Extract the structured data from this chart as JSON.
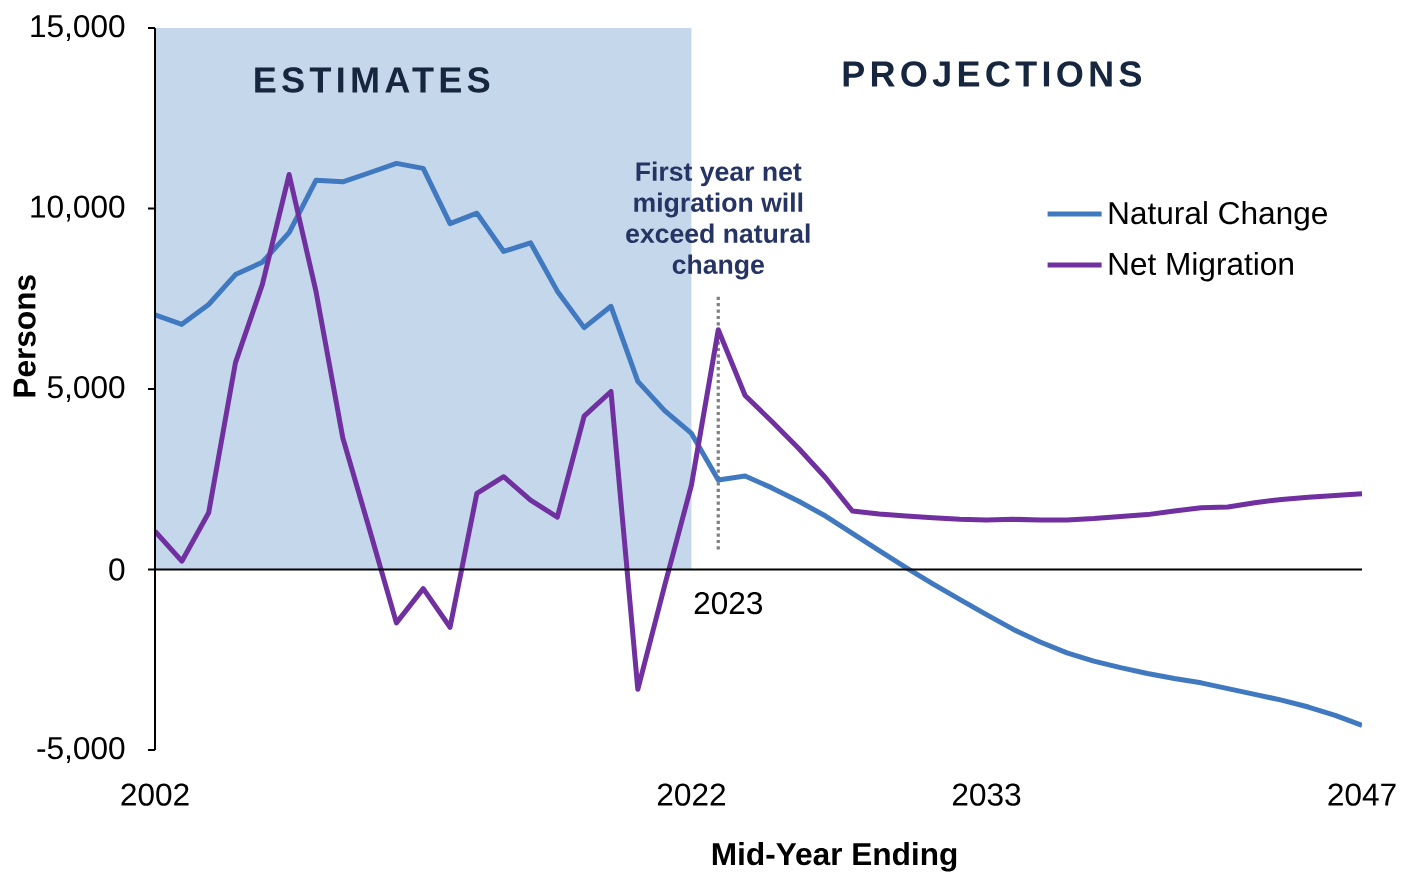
{
  "chart_data": {
    "type": "line",
    "xlabel": "Mid-Year Ending",
    "ylabel": "Persons",
    "x": [
      2002,
      2003,
      2004,
      2005,
      2006,
      2007,
      2008,
      2009,
      2010,
      2011,
      2012,
      2013,
      2014,
      2015,
      2016,
      2017,
      2018,
      2019,
      2020,
      2021,
      2022,
      2023,
      2024,
      2025,
      2026,
      2027,
      2028,
      2029,
      2030,
      2031,
      2032,
      2033,
      2034,
      2035,
      2036,
      2037,
      2038,
      2039,
      2040,
      2041,
      2042,
      2043,
      2044,
      2045,
      2046,
      2047
    ],
    "series": [
      {
        "name": "Natural Change",
        "color": "#4079bf",
        "values": [
          7050,
          6790,
          7340,
          8170,
          8510,
          9330,
          10780,
          10740,
          10990,
          11250,
          11110,
          9580,
          9870,
          8810,
          9050,
          7710,
          6700,
          7290,
          5210,
          4400,
          3770,
          2480,
          2590,
          2260,
          1890,
          1480,
          1000,
          520,
          50,
          -400,
          -830,
          -1250,
          -1660,
          -2010,
          -2310,
          -2540,
          -2720,
          -2880,
          -3020,
          -3140,
          -3300,
          -3460,
          -3620,
          -3810,
          -4040,
          -4320
        ]
      },
      {
        "name": "Net Migration",
        "color": "#7030a0",
        "values": [
          1060,
          230,
          1570,
          5730,
          7890,
          10940,
          7710,
          3650,
          1100,
          -1480,
          -530,
          -1600,
          2110,
          2570,
          1920,
          1450,
          4250,
          4930,
          -3320,
          -450,
          2340,
          6640,
          4820,
          4100,
          3350,
          2540,
          1620,
          1540,
          1480,
          1430,
          1390,
          1370,
          1390,
          1370,
          1370,
          1410,
          1470,
          1520,
          1620,
          1710,
          1730,
          1850,
          1940,
          2000,
          2050,
          2100
        ]
      }
    ],
    "xlim": [
      2002,
      2047
    ],
    "xticks": [
      2002,
      2022,
      2033,
      2047
    ],
    "ylim": [
      -5000,
      15000
    ],
    "yticks": [
      {
        "value": -5000,
        "label": "-5,000"
      },
      0,
      {
        "value": 5000,
        "label": "5,000"
      },
      {
        "value": 10000,
        "label": "10,000"
      },
      {
        "value": 15000,
        "label": "15,000"
      }
    ],
    "bands": [
      {
        "axis": "x",
        "from": 2002,
        "to": 2022,
        "label": "ESTIMATES",
        "color": "#c5d7eb"
      }
    ],
    "ref_lines": [
      {
        "axis": "x",
        "value": 2023,
        "label": "2023",
        "color": "#808080",
        "line_style": "dotted"
      }
    ],
    "annotations": [
      "PROJECTIONS",
      {
        "text": "First year net migration will exceed natural change",
        "x": 2023,
        "y": 6640
      }
    ],
    "legend": "top right",
    "marker": "none",
    "line_style": "solid"
  }
}
